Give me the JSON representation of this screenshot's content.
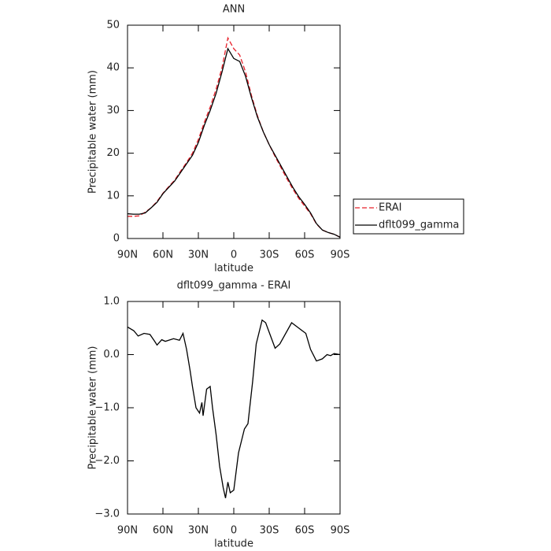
{
  "chart_data": [
    {
      "type": "line",
      "title": "ANN",
      "x_label": "latitude",
      "y_label": "Precipitable water (mm)",
      "x": [
        90,
        85,
        80,
        75,
        70,
        65,
        60,
        55,
        50,
        45,
        40,
        35,
        30,
        25,
        20,
        15,
        10,
        5,
        0,
        -5,
        -10,
        -15,
        -20,
        -25,
        -30,
        -35,
        -40,
        -45,
        -50,
        -55,
        -60,
        -65,
        -70,
        -75,
        -80,
        -85,
        -90
      ],
      "series": [
        {
          "name": "ERAI",
          "color": "#e8202a",
          "style": "dashed",
          "values": [
            5.2,
            5.2,
            5.3,
            6.2,
            7.2,
            8.7,
            10.6,
            12.2,
            13.7,
            15.8,
            17.8,
            20,
            23.2,
            27.2,
            30.8,
            35,
            40,
            47,
            44.5,
            43,
            39,
            33.5,
            28.8,
            25,
            22,
            19.2,
            16.6,
            14,
            11.6,
            9.4,
            7.6,
            5.8,
            3.4,
            2,
            1.4,
            1,
            0.3
          ]
        },
        {
          "name": "dflt099_gamma",
          "color": "#000000",
          "style": "solid",
          "values": [
            5.8,
            5.7,
            5.7,
            6.0,
            7.2,
            8.5,
            10.5,
            12.0,
            13.5,
            15.5,
            17.5,
            19.5,
            22.5,
            26.5,
            30,
            34,
            39,
            44.5,
            42.2,
            41.5,
            38,
            33,
            28.5,
            25,
            22,
            19.5,
            17,
            14.5,
            12,
            9.8,
            8,
            6,
            3.5,
            2,
            1.4,
            1,
            0.3
          ]
        }
      ],
      "xlim": [
        90,
        -90
      ],
      "xticks": [
        {
          "value": 90,
          "label": "90N"
        },
        {
          "value": 60,
          "label": "60N"
        },
        {
          "value": 30,
          "label": "30N"
        },
        0,
        {
          "value": -30,
          "label": "30S"
        },
        {
          "value": -60,
          "label": "60S"
        },
        {
          "value": -90,
          "label": "90S"
        }
      ],
      "ylim": [
        0,
        50
      ],
      "yticks": [
        0,
        10,
        20,
        30,
        40,
        50
      ],
      "legend": "right"
    },
    {
      "type": "line",
      "title": "dflt099_gamma - ERAI",
      "x_label": "latitude",
      "y_label": "Precipitable water (mm)",
      "x": [
        90,
        84.7,
        81,
        76,
        71,
        67,
        65,
        61,
        58,
        51,
        46,
        43,
        40,
        37,
        35,
        32,
        29,
        27,
        26,
        23,
        20,
        18,
        15,
        12,
        9,
        7,
        5,
        3,
        0,
        -2,
        -4,
        -9,
        -12,
        -16,
        -19,
        -24,
        -27,
        -32,
        -35,
        -39,
        -49,
        -55,
        -61,
        -65,
        -70,
        -75,
        -79,
        -82,
        -85,
        -90
      ],
      "values": [
        0.52,
        0.45,
        0.35,
        0.4,
        0.38,
        0.25,
        0.18,
        0.28,
        0.25,
        0.3,
        0.27,
        0.4,
        0.1,
        -0.3,
        -0.6,
        -1.0,
        -1.1,
        -0.9,
        -1.15,
        -0.65,
        -0.6,
        -1.0,
        -1.5,
        -2.1,
        -2.5,
        -2.7,
        -2.4,
        -2.6,
        -2.55,
        -2.2,
        -1.85,
        -1.4,
        -1.3,
        -0.5,
        0.2,
        0.65,
        0.6,
        0.3,
        0.12,
        0.2,
        0.6,
        0.5,
        0.4,
        0.1,
        -0.12,
        -0.08,
        0.0,
        -0.02,
        0.02,
        0.0
      ],
      "color": "#000000",
      "xlim": [
        90,
        -90
      ],
      "xticks": [
        {
          "value": 90,
          "label": "90N"
        },
        {
          "value": 60,
          "label": "60N"
        },
        {
          "value": 30,
          "label": "30N"
        },
        0,
        {
          "value": -30,
          "label": "30S"
        },
        {
          "value": -60,
          "label": "60S"
        },
        {
          "value": -90,
          "label": "90S"
        }
      ],
      "ylim": [
        -3,
        1
      ],
      "yticks": [
        {
          "value": 1,
          "label": "1.0"
        },
        {
          "value": 0,
          "label": "0.0"
        },
        {
          "value": -1,
          "label": "−1.0"
        },
        {
          "value": -2,
          "label": "−2.0"
        },
        {
          "value": -3,
          "label": "−3.0"
        }
      ]
    }
  ]
}
